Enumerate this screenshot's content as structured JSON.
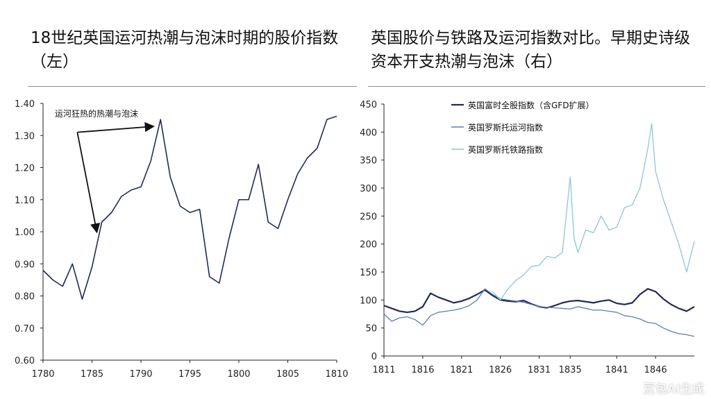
{
  "titles": {
    "left": "18世纪英国运河热潮与泡沫时期的股价指数（左）",
    "right": "英国股价与铁路及运河指数对比。早期史诗级资本开支热潮与泡沫（右）"
  },
  "watermark": "豆包AI生成",
  "colors": {
    "dark": "#1f2a5c",
    "mid": "#5b7fb0",
    "light": "#8ec4dd",
    "text": "#222222"
  },
  "chart_data": [
    {
      "type": "line",
      "title": "18世纪英国运河热潮与泡沫时期的股价指数",
      "x": [
        1780,
        1781,
        1782,
        1783,
        1784,
        1785,
        1786,
        1787,
        1788,
        1789,
        1790,
        1791,
        1792,
        1793,
        1794,
        1795,
        1796,
        1797,
        1798,
        1799,
        1800,
        1801,
        1802,
        1803,
        1804,
        1805,
        1806,
        1807,
        1808,
        1809,
        1810
      ],
      "series": [
        {
          "name": "股价指数",
          "values": [
            0.88,
            0.85,
            0.83,
            0.9,
            0.79,
            0.89,
            1.03,
            1.06,
            1.11,
            1.13,
            1.14,
            1.22,
            1.35,
            1.17,
            1.08,
            1.06,
            1.07,
            0.86,
            0.84,
            0.98,
            1.1,
            1.1,
            1.21,
            1.03,
            1.01,
            1.1,
            1.18,
            1.23,
            1.26,
            1.35,
            1.36
          ]
        }
      ],
      "xlim": [
        1780,
        1810
      ],
      "ylim": [
        0.6,
        1.4
      ],
      "x_ticks": [
        "1780",
        "1785",
        "1790",
        "1795",
        "1800",
        "1805",
        "1810"
      ],
      "y_ticks": [
        "0.60",
        "0.70",
        "0.80",
        "0.90",
        "1.00",
        "1.10",
        "1.20",
        "1.30",
        "1.40"
      ],
      "annotation": {
        "text": "运河狂热的热潮与泡沫",
        "origin": [
          1783.5,
          1.31
        ],
        "targets": [
          [
            1785.5,
            0.99
          ],
          [
            1792,
            1.35
          ]
        ]
      }
    },
    {
      "type": "line",
      "title": "英国股价与铁路及运河指数对比",
      "xlim": [
        1811,
        1851
      ],
      "ylim": [
        0,
        450
      ],
      "x_ticks": [
        "1811",
        "1816",
        "1821",
        "1826",
        "1831",
        "1835",
        "1841",
        "1846"
      ],
      "y_ticks": [
        "0",
        "50",
        "100",
        "150",
        "200",
        "250",
        "300",
        "350",
        "400",
        "450"
      ],
      "legend": [
        "英国富时全股指数（含GFD扩展）",
        "英国罗斯托运河指数",
        "英国罗斯托铁路指数"
      ],
      "series": [
        {
          "name": "英国富时全股指数（含GFD扩展）",
          "x": [
            1811,
            1812,
            1813,
            1814,
            1815,
            1816,
            1817,
            1818,
            1819,
            1820,
            1821,
            1822,
            1823,
            1824,
            1825,
            1826,
            1827,
            1828,
            1829,
            1830,
            1831,
            1832,
            1833,
            1834,
            1835,
            1836,
            1837,
            1838,
            1839,
            1840,
            1841,
            1842,
            1843,
            1844,
            1845,
            1846,
            1847,
            1848,
            1849,
            1850,
            1851
          ],
          "values": [
            90,
            85,
            80,
            78,
            80,
            88,
            112,
            105,
            100,
            95,
            98,
            103,
            110,
            118,
            108,
            100,
            98,
            97,
            99,
            93,
            88,
            86,
            90,
            95,
            98,
            99,
            97,
            95,
            98,
            100,
            94,
            92,
            95,
            110,
            120,
            115,
            102,
            92,
            85,
            80,
            88
          ]
        },
        {
          "name": "英国罗斯托运河指数",
          "x": [
            1811,
            1812,
            1813,
            1814,
            1815,
            1816,
            1817,
            1818,
            1819,
            1820,
            1821,
            1822,
            1823,
            1824,
            1825,
            1826,
            1827,
            1828,
            1829,
            1830,
            1831,
            1832,
            1833,
            1834,
            1835,
            1836,
            1837,
            1838,
            1839,
            1840,
            1841,
            1842,
            1843,
            1844,
            1845,
            1846,
            1847,
            1848,
            1849,
            1850,
            1851
          ],
          "values": [
            75,
            62,
            68,
            70,
            65,
            55,
            72,
            78,
            80,
            82,
            85,
            90,
            100,
            120,
            110,
            102,
            100,
            98,
            96,
            92,
            88,
            87,
            86,
            85,
            84,
            88,
            85,
            82,
            82,
            80,
            78,
            72,
            70,
            66,
            60,
            58,
            50,
            44,
            40,
            38,
            35
          ]
        },
        {
          "name": "英国罗斯托铁路指数",
          "x": [
            1825,
            1826,
            1827,
            1828,
            1829,
            1830,
            1831,
            1832,
            1833,
            1834,
            1835,
            1835.5,
            1836,
            1837,
            1838,
            1839,
            1840,
            1841,
            1842,
            1843,
            1844,
            1845,
            1845.5,
            1846,
            1847,
            1848,
            1849,
            1850,
            1851
          ],
          "values": [
            115,
            100,
            120,
            135,
            145,
            160,
            162,
            178,
            175,
            185,
            320,
            210,
            185,
            225,
            220,
            250,
            225,
            230,
            265,
            270,
            300,
            370,
            415,
            330,
            280,
            240,
            200,
            150,
            205
          ]
        }
      ]
    }
  ]
}
